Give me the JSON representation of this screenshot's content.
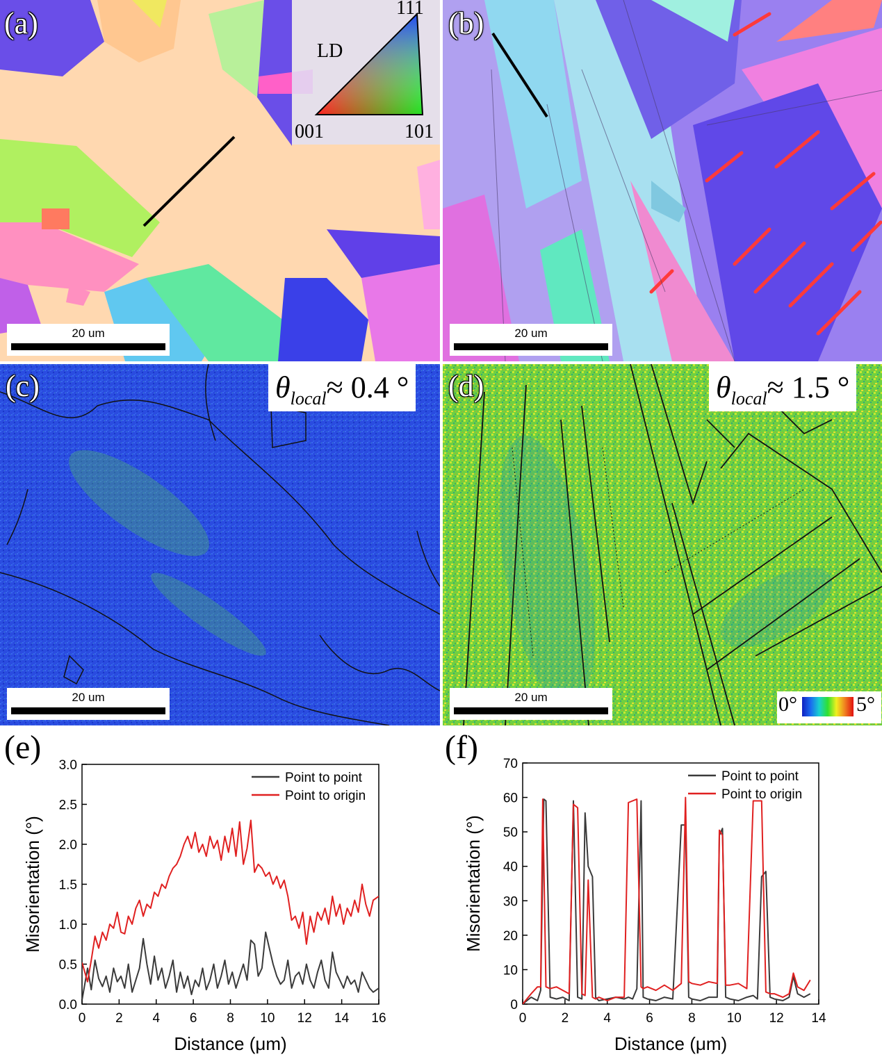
{
  "panels": {
    "a": {
      "label": "(a)",
      "scale": "20 um"
    },
    "b": {
      "label": "(b)",
      "scale": "20 um"
    },
    "c": {
      "label": "(c)",
      "scale": "20 um",
      "theta_sub": "local",
      "theta_value": "≈ 0.4 °"
    },
    "d": {
      "label": "(d)",
      "scale": "20 um",
      "theta_sub": "local",
      "theta_value": "≈ 1.5 °"
    }
  },
  "ipf_key": {
    "axis": "LD",
    "top": "111",
    "left": "001",
    "right": "101"
  },
  "colorbar": {
    "min": "0°",
    "max": "5°"
  },
  "chart_data": [
    {
      "type": "line",
      "panel_label": "(e)",
      "xlabel": "Distance (μm)",
      "ylabel": "Misorientation (°)",
      "xlim": [
        0,
        16
      ],
      "ylim": [
        0,
        3.0
      ],
      "xticks": [
        0,
        2,
        4,
        6,
        8,
        10,
        12,
        14,
        16
      ],
      "yticks": [
        0.0,
        0.5,
        1.0,
        1.5,
        2.0,
        2.5,
        3.0
      ],
      "ytick_labels": [
        "0.0",
        "0.5",
        "1.0",
        "1.5",
        "2.0",
        "2.5",
        "3.0"
      ],
      "legend_position": "top-right",
      "series": [
        {
          "name": "Point to point",
          "color": "#3a3a3a",
          "x": [
            0,
            0.3,
            0.5,
            0.7,
            0.9,
            1.1,
            1.3,
            1.5,
            1.7,
            1.9,
            2.1,
            2.3,
            2.5,
            2.7,
            2.9,
            3.1,
            3.3,
            3.5,
            3.7,
            3.9,
            4.1,
            4.3,
            4.5,
            4.7,
            4.9,
            5.1,
            5.3,
            5.5,
            5.7,
            5.9,
            6.1,
            6.3,
            6.5,
            6.7,
            6.9,
            7.1,
            7.3,
            7.5,
            7.7,
            7.9,
            8.1,
            8.3,
            8.5,
            8.7,
            8.9,
            9.1,
            9.3,
            9.5,
            9.7,
            9.9,
            10.1,
            10.3,
            10.5,
            10.7,
            10.9,
            11.1,
            11.3,
            11.5,
            11.7,
            11.9,
            12.1,
            12.3,
            12.5,
            12.7,
            12.9,
            13.1,
            13.3,
            13.5,
            13.7,
            13.9,
            14.1,
            14.3,
            14.5,
            14.7,
            14.9,
            15.1,
            15.3,
            15.5,
            15.7,
            16.0
          ],
          "values": [
            0.05,
            0.45,
            0.18,
            0.55,
            0.32,
            0.22,
            0.35,
            0.15,
            0.45,
            0.28,
            0.35,
            0.2,
            0.5,
            0.15,
            0.3,
            0.45,
            0.82,
            0.5,
            0.25,
            0.6,
            0.3,
            0.45,
            0.2,
            0.35,
            0.55,
            0.15,
            0.4,
            0.2,
            0.35,
            0.12,
            0.3,
            0.22,
            0.45,
            0.18,
            0.3,
            0.5,
            0.2,
            0.35,
            0.55,
            0.25,
            0.4,
            0.2,
            0.35,
            0.5,
            0.3,
            0.8,
            0.75,
            0.35,
            0.45,
            0.9,
            0.7,
            0.5,
            0.35,
            0.25,
            0.3,
            0.55,
            0.2,
            0.35,
            0.4,
            0.25,
            0.5,
            0.3,
            0.2,
            0.4,
            0.55,
            0.3,
            0.2,
            0.65,
            0.4,
            0.3,
            0.2,
            0.35,
            0.25,
            0.3,
            0.15,
            0.4,
            0.3,
            0.2,
            0.15,
            0.2
          ]
        },
        {
          "name": "Point to origin",
          "color": "#e02020",
          "x": [
            0,
            0.3,
            0.5,
            0.7,
            0.9,
            1.1,
            1.3,
            1.5,
            1.7,
            1.9,
            2.1,
            2.3,
            2.5,
            2.7,
            2.9,
            3.1,
            3.3,
            3.5,
            3.7,
            3.9,
            4.1,
            4.3,
            4.5,
            4.7,
            4.9,
            5.1,
            5.3,
            5.5,
            5.7,
            5.9,
            6.1,
            6.3,
            6.5,
            6.7,
            6.9,
            7.1,
            7.3,
            7.5,
            7.7,
            7.9,
            8.1,
            8.3,
            8.5,
            8.7,
            8.9,
            9.1,
            9.3,
            9.5,
            9.7,
            9.9,
            10.1,
            10.3,
            10.5,
            10.7,
            10.9,
            11.1,
            11.3,
            11.5,
            11.7,
            11.9,
            12.1,
            12.3,
            12.5,
            12.7,
            12.9,
            13.1,
            13.3,
            13.5,
            13.7,
            13.9,
            14.1,
            14.3,
            14.5,
            14.7,
            14.9,
            15.1,
            15.3,
            15.5,
            15.7,
            16.0
          ],
          "values": [
            0.52,
            0.28,
            0.55,
            0.85,
            0.7,
            0.9,
            0.8,
            1.0,
            0.95,
            1.15,
            0.9,
            0.88,
            1.1,
            1.0,
            1.2,
            1.3,
            1.1,
            1.25,
            1.2,
            1.4,
            1.35,
            1.5,
            1.45,
            1.6,
            1.7,
            1.75,
            1.85,
            2.0,
            2.1,
            1.95,
            2.15,
            1.9,
            2.0,
            1.85,
            2.1,
            1.95,
            2.05,
            1.8,
            2.1,
            1.9,
            2.2,
            1.85,
            2.28,
            1.75,
            1.95,
            2.3,
            1.65,
            1.75,
            1.7,
            1.6,
            1.65,
            1.5,
            1.6,
            1.45,
            1.55,
            1.35,
            1.05,
            1.1,
            0.95,
            1.15,
            0.75,
            1.1,
            0.9,
            1.15,
            1.05,
            1.2,
            1.0,
            1.35,
            1.1,
            1.25,
            1.0,
            1.2,
            1.1,
            1.3,
            1.15,
            1.5,
            1.25,
            1.1,
            1.3,
            1.35
          ]
        }
      ]
    },
    {
      "type": "line",
      "panel_label": "(f)",
      "xlabel": "Distance (μm)",
      "ylabel": "Misorientation (°)",
      "xlim": [
        0,
        14
      ],
      "ylim": [
        0,
        70
      ],
      "xticks": [
        0,
        2,
        4,
        6,
        8,
        10,
        12,
        14
      ],
      "yticks": [
        0,
        10,
        20,
        30,
        40,
        50,
        60,
        70
      ],
      "ytick_labels": [
        "0",
        "10",
        "20",
        "30",
        "40",
        "50",
        "60",
        "70"
      ],
      "legend_position": "top-right",
      "series": [
        {
          "name": "Point to point",
          "color": "#3a3a3a",
          "x": [
            0,
            0.4,
            0.7,
            0.85,
            1.0,
            1.1,
            1.3,
            1.6,
            1.9,
            2.2,
            2.4,
            2.6,
            2.8,
            2.95,
            3.1,
            3.3,
            3.45,
            3.6,
            4.0,
            4.4,
            4.8,
            5.0,
            5.2,
            5.4,
            5.6,
            5.7,
            5.9,
            6.3,
            6.7,
            7.1,
            7.5,
            7.7,
            7.85,
            8.0,
            8.4,
            8.8,
            9.2,
            9.3,
            9.45,
            9.6,
            9.8,
            10.2,
            10.6,
            10.9,
            11.1,
            11.3,
            11.5,
            11.7,
            11.9,
            12.3,
            12.6,
            12.8,
            13.0,
            13.3,
            13.6
          ],
          "values": [
            0,
            2,
            1,
            4,
            59.5,
            59,
            2,
            1.5,
            2,
            1,
            59,
            2,
            1.5,
            55.5,
            40,
            37,
            2,
            1,
            1.5,
            2,
            1.5,
            2,
            1.5,
            4.5,
            59,
            2,
            1.5,
            1,
            2,
            1.5,
            52,
            52,
            2,
            1.5,
            1,
            2,
            2,
            49,
            51,
            2,
            1.5,
            1,
            2,
            2.5,
            1.5,
            37,
            38.5,
            2,
            1.5,
            1,
            2,
            8,
            3,
            2,
            3
          ]
        },
        {
          "name": "Point to origin",
          "color": "#e02020",
          "x": [
            0,
            0.4,
            0.7,
            0.85,
            0.95,
            1.1,
            1.3,
            1.6,
            1.9,
            2.2,
            2.4,
            2.6,
            2.8,
            2.95,
            3.1,
            3.3,
            3.45,
            3.6,
            4.0,
            4.4,
            4.8,
            5.0,
            5.2,
            5.4,
            5.6,
            5.7,
            5.9,
            6.3,
            6.7,
            7.1,
            7.5,
            7.7,
            7.85,
            8.0,
            8.4,
            8.8,
            9.2,
            9.3,
            9.45,
            9.6,
            9.8,
            10.2,
            10.6,
            10.9,
            11.1,
            11.3,
            11.5,
            11.7,
            11.9,
            12.3,
            12.6,
            12.8,
            13.0,
            13.3,
            13.6
          ],
          "values": [
            0,
            3,
            5,
            5,
            59.5,
            5,
            4.5,
            5,
            4,
            3,
            58,
            57,
            3,
            2.5,
            36,
            2,
            1.5,
            2,
            1,
            2,
            2,
            58.5,
            59,
            59.5,
            5,
            4.5,
            5,
            4,
            5.5,
            4,
            6,
            60,
            6.5,
            6,
            5.5,
            6.5,
            6,
            50.5,
            49,
            5.5,
            5.5,
            6,
            4.5,
            59,
            59,
            59,
            3.5,
            3,
            3,
            2,
            3,
            9,
            5,
            4,
            7
          ]
        }
      ]
    }
  ]
}
